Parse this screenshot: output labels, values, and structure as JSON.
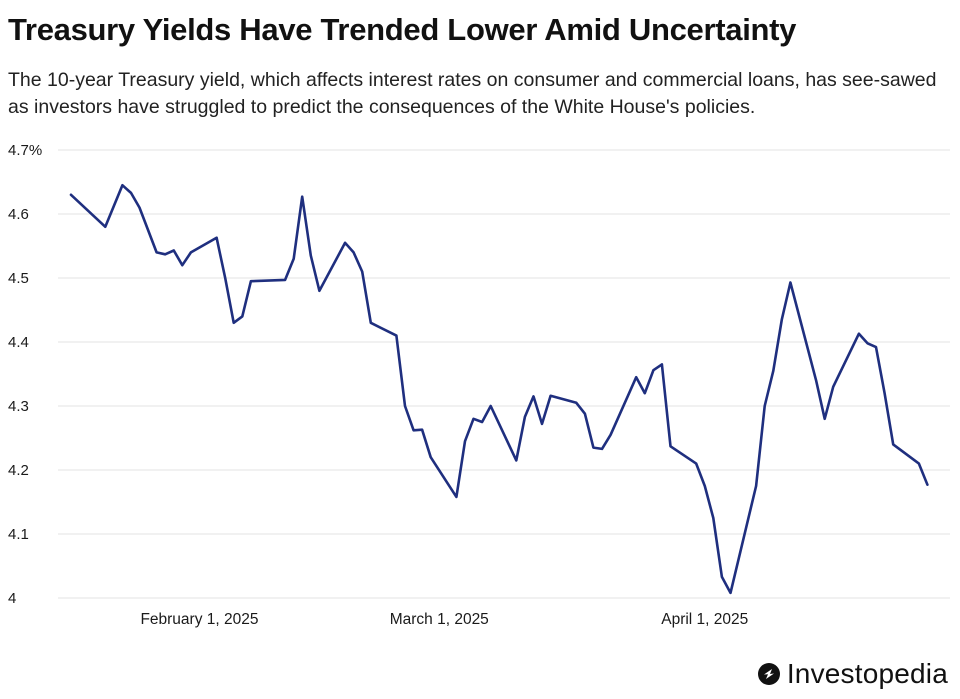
{
  "header": {
    "title": "Treasury Yields Have Trended Lower Amid Uncertainty",
    "subtitle": "The 10-year Treasury yield, which affects interest rates on consumer and commercial loans, has see-sawed as investors have struggled to predict the consequences of the White House's policies."
  },
  "brand": {
    "logo_text": "Investopedia",
    "logo_icon": "investopedia-logo-icon"
  },
  "colors": {
    "line": "#1f2f7f",
    "grid": "#e3e3e3",
    "text": "#1a1a1a"
  },
  "chart_data": {
    "type": "line",
    "title": "Treasury Yields Have Trended Lower Amid Uncertainty",
    "xlabel": "",
    "ylabel": "",
    "ylim": [
      4.0,
      4.7
    ],
    "xlim": [
      0,
      101
    ],
    "grid": true,
    "y_ticks": [
      {
        "value": 4.7,
        "label": "4.7%"
      },
      {
        "value": 4.6,
        "label": "4.6"
      },
      {
        "value": 4.5,
        "label": "4.5"
      },
      {
        "value": 4.4,
        "label": "4.4"
      },
      {
        "value": 4.3,
        "label": "4.3"
      },
      {
        "value": 4.2,
        "label": "4.2"
      },
      {
        "value": 4.1,
        "label": "4.1"
      },
      {
        "value": 4.0,
        "label": "4"
      }
    ],
    "x_ticks": [
      {
        "value": 15,
        "label": "February 1, 2025"
      },
      {
        "value": 43,
        "label": "March 1, 2025"
      },
      {
        "value": 74,
        "label": "April 1, 2025"
      }
    ],
    "series": [
      {
        "name": "10-year Treasury yield",
        "points": [
          [
            0,
            4.63
          ],
          [
            4,
            4.58
          ],
          [
            6,
            4.645
          ],
          [
            7,
            4.633
          ],
          [
            8,
            4.61
          ],
          [
            10,
            4.54
          ],
          [
            11,
            4.537
          ],
          [
            12,
            4.543
          ],
          [
            13,
            4.52
          ],
          [
            14,
            4.54
          ],
          [
            17,
            4.563
          ],
          [
            18,
            4.5
          ],
          [
            19,
            4.43
          ],
          [
            20,
            4.44
          ],
          [
            21,
            4.495
          ],
          [
            25,
            4.497
          ],
          [
            26,
            4.53
          ],
          [
            27,
            4.627
          ],
          [
            28,
            4.535
          ],
          [
            29,
            4.48
          ],
          [
            32,
            4.555
          ],
          [
            33,
            4.54
          ],
          [
            34,
            4.51
          ],
          [
            35,
            4.43
          ],
          [
            38,
            4.41
          ],
          [
            39,
            4.3
          ],
          [
            40,
            4.262
          ],
          [
            41,
            4.263
          ],
          [
            42,
            4.22
          ],
          [
            45,
            4.158
          ],
          [
            46,
            4.245
          ],
          [
            47,
            4.28
          ],
          [
            48,
            4.275
          ],
          [
            49,
            4.3
          ],
          [
            52,
            4.215
          ],
          [
            53,
            4.283
          ],
          [
            54,
            4.315
          ],
          [
            55,
            4.272
          ],
          [
            56,
            4.316
          ],
          [
            59,
            4.305
          ],
          [
            60,
            4.288
          ],
          [
            61,
            4.235
          ],
          [
            62,
            4.233
          ],
          [
            63,
            4.255
          ],
          [
            66,
            4.345
          ],
          [
            67,
            4.32
          ],
          [
            68,
            4.356
          ],
          [
            69,
            4.365
          ],
          [
            70,
            4.237
          ],
          [
            73,
            4.21
          ],
          [
            74,
            4.175
          ],
          [
            75,
            4.125
          ],
          [
            76,
            4.033
          ],
          [
            77,
            4.008
          ],
          [
            80,
            4.175
          ],
          [
            81,
            4.3
          ],
          [
            82,
            4.355
          ],
          [
            83,
            4.435
          ],
          [
            84,
            4.493
          ],
          [
            87,
            4.34
          ],
          [
            88,
            4.28
          ],
          [
            89,
            4.33
          ],
          [
            92,
            4.413
          ],
          [
            93,
            4.398
          ],
          [
            94,
            4.392
          ],
          [
            95,
            4.32
          ],
          [
            96,
            4.24
          ],
          [
            99,
            4.21
          ],
          [
            100,
            4.177
          ]
        ]
      }
    ]
  }
}
